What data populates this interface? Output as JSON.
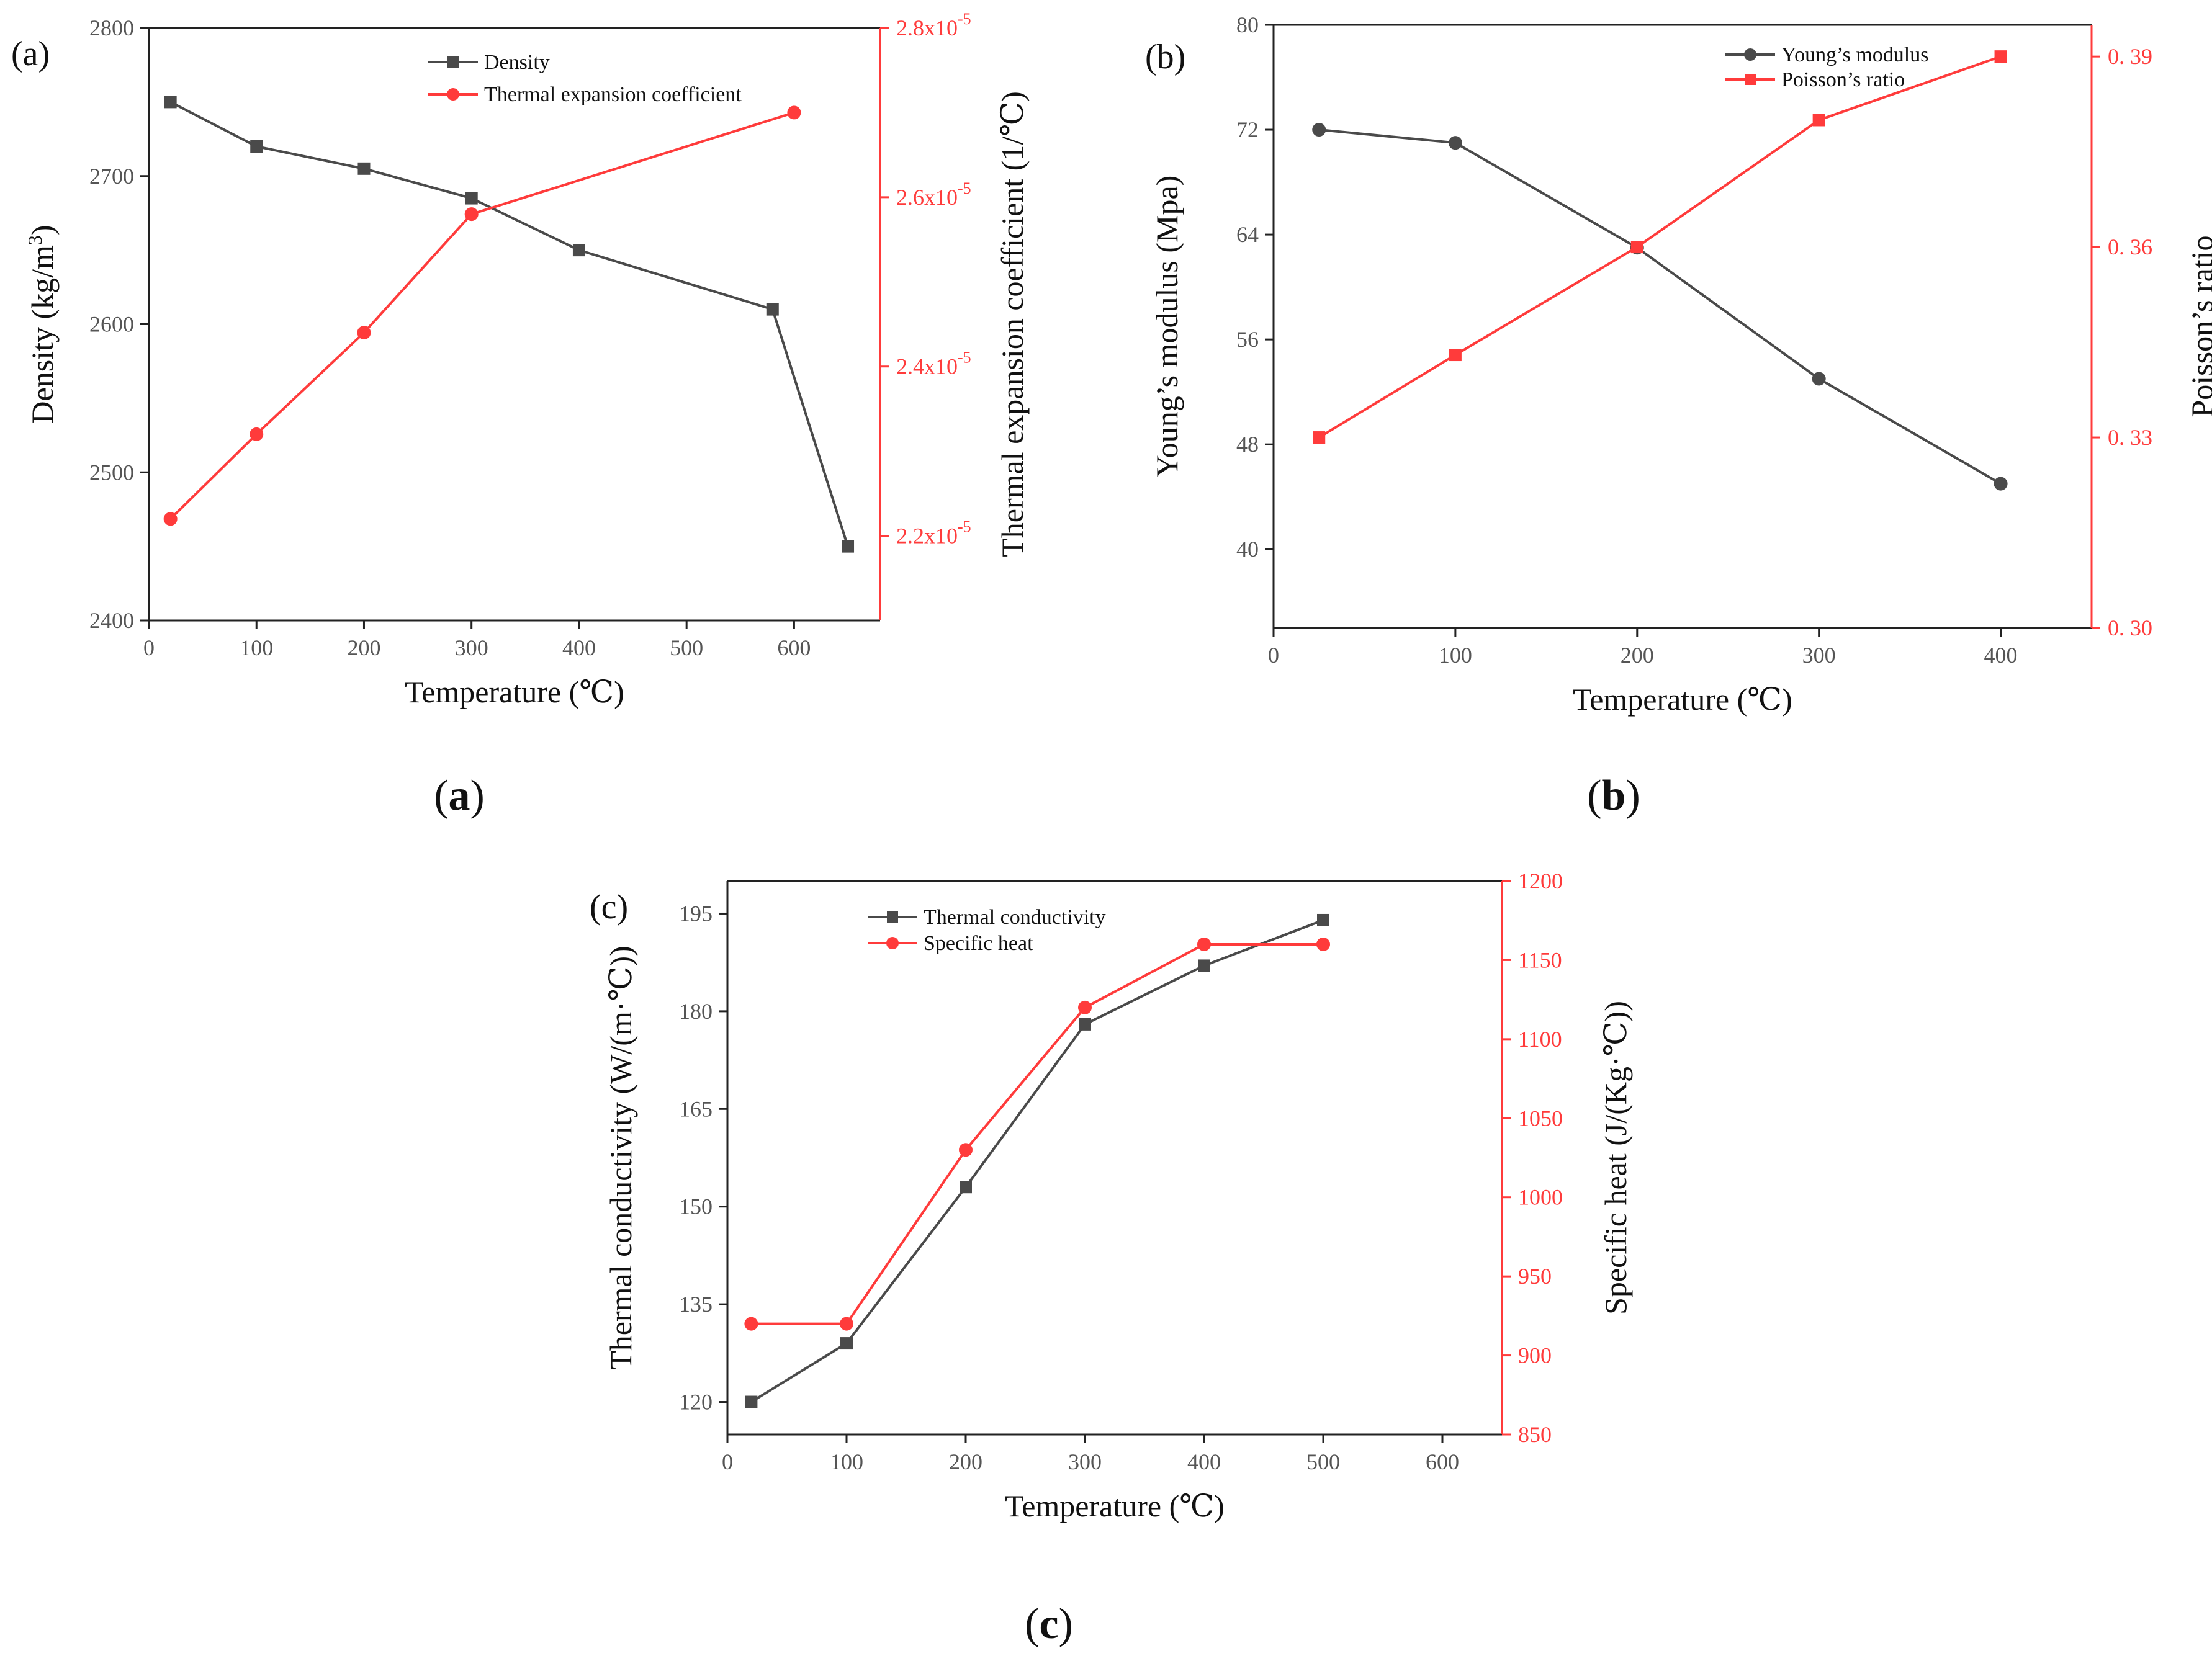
{
  "colors": {
    "black_series": "#4a4a4a",
    "red_series": "#ff3b3b",
    "axis": "#222222",
    "red_axis": "#ff3b3b"
  },
  "captions": {
    "a": [
      "(",
      "a",
      ")"
    ],
    "b": [
      "(",
      "b",
      ")"
    ],
    "c": [
      "(",
      "c",
      ")"
    ]
  },
  "chart_data": [
    {
      "id": "a",
      "type": "line",
      "panel_label": "(a)",
      "xlabel": "Temperature (℃)",
      "xlim": [
        0,
        680
      ],
      "xticks": [
        0,
        100,
        200,
        300,
        400,
        500,
        600
      ],
      "left_axis": {
        "label_parts": [
          "Density (kg/m",
          "3",
          ")"
        ],
        "lim": [
          2400,
          2800
        ],
        "ticks": [
          2400,
          2500,
          2600,
          2700,
          2800
        ]
      },
      "right_axis": {
        "label": "Thermal expansion coefficient  (1/℃)",
        "lim": [
          2.1e-05,
          2.8e-05
        ],
        "ticks": [
          2.2e-05,
          2.4e-05,
          2.6e-05,
          2.8e-05
        ],
        "tick_labels": [
          {
            "base": "2.2x10",
            "exp": "-5"
          },
          {
            "base": "2.4x10",
            "exp": "-5"
          },
          {
            "base": "2.6x10",
            "exp": "-5"
          },
          {
            "base": "2.8x10",
            "exp": "-5"
          }
        ]
      },
      "series": [
        {
          "name": "Density",
          "axis": "left",
          "color": "#4a4a4a",
          "marker": "square",
          "x": [
            20,
            100,
            200,
            300,
            400,
            580,
            650
          ],
          "y": [
            2750,
            2720,
            2705,
            2685,
            2650,
            2610,
            2450
          ]
        },
        {
          "name": "Thermal expansion coefficient",
          "axis": "right",
          "color": "#ff3b3b",
          "marker": "circle",
          "x": [
            20,
            100,
            200,
            300,
            600
          ],
          "y": [
            2.22e-05,
            2.32e-05,
            2.44e-05,
            2.58e-05,
            2.7e-05
          ]
        }
      ],
      "legend_position": "top-center"
    },
    {
      "id": "b",
      "type": "line",
      "panel_label": "(b)",
      "xlabel": "Temperature (℃)",
      "xlim": [
        0,
        450
      ],
      "xticks": [
        0,
        100,
        200,
        300,
        400
      ],
      "left_axis": {
        "label_parts": [
          "Young’s modulus (Mpa)"
        ],
        "lim": [
          34,
          80
        ],
        "ticks": [
          40,
          48,
          56,
          64,
          72,
          80
        ]
      },
      "right_axis": {
        "label": "Poisson’s ratio",
        "lim": [
          0.3,
          0.395
        ],
        "ticks": [
          0.3,
          0.33,
          0.36,
          0.39
        ],
        "tick_labels": [
          {
            "base": "0. 30",
            "exp": ""
          },
          {
            "base": "0. 33",
            "exp": ""
          },
          {
            "base": "0. 36",
            "exp": ""
          },
          {
            "base": "0. 39",
            "exp": ""
          }
        ]
      },
      "series": [
        {
          "name": "Young’s modulus",
          "axis": "left",
          "color": "#4a4a4a",
          "marker": "circle",
          "x": [
            25,
            100,
            200,
            300,
            400
          ],
          "y": [
            72,
            71,
            63,
            53,
            45
          ]
        },
        {
          "name": "Poisson’s ratio",
          "axis": "right",
          "color": "#ff3b3b",
          "marker": "square",
          "x": [
            25,
            100,
            200,
            300,
            400
          ],
          "y": [
            0.33,
            0.343,
            0.36,
            0.38,
            0.39
          ]
        }
      ],
      "legend_position": "top-right"
    },
    {
      "id": "c",
      "type": "line",
      "panel_label": "(c)",
      "xlabel": "Temperature (℃)",
      "xlim": [
        0,
        650
      ],
      "xticks": [
        0,
        100,
        200,
        300,
        400,
        500,
        600
      ],
      "left_axis": {
        "label_parts": [
          "Thermal conductivity (W/(m·℃))"
        ],
        "lim": [
          115,
          200
        ],
        "ticks": [
          120,
          135,
          150,
          165,
          180,
          195
        ]
      },
      "right_axis": {
        "label": "Specific heat (J/(Kg·℃))",
        "lim": [
          850,
          1200
        ],
        "ticks": [
          850,
          900,
          950,
          1000,
          1050,
          1100,
          1150,
          1200
        ],
        "tick_labels": [
          {
            "base": "850",
            "exp": ""
          },
          {
            "base": "900",
            "exp": ""
          },
          {
            "base": "950",
            "exp": ""
          },
          {
            "base": "1000",
            "exp": ""
          },
          {
            "base": "1050",
            "exp": ""
          },
          {
            "base": "1100",
            "exp": ""
          },
          {
            "base": "1150",
            "exp": ""
          },
          {
            "base": "1200",
            "exp": ""
          }
        ]
      },
      "series": [
        {
          "name": "Thermal conductivity",
          "axis": "left",
          "color": "#4a4a4a",
          "marker": "square",
          "x": [
            20,
            100,
            200,
            300,
            400,
            500
          ],
          "y": [
            120,
            129,
            153,
            178,
            187,
            194
          ]
        },
        {
          "name": "Specific heat",
          "axis": "right",
          "color": "#ff3b3b",
          "marker": "circle",
          "x": [
            20,
            100,
            200,
            300,
            400,
            500
          ],
          "y": [
            920,
            920,
            1030,
            1120,
            1160,
            1160
          ]
        }
      ],
      "legend_position": "top-left"
    }
  ]
}
